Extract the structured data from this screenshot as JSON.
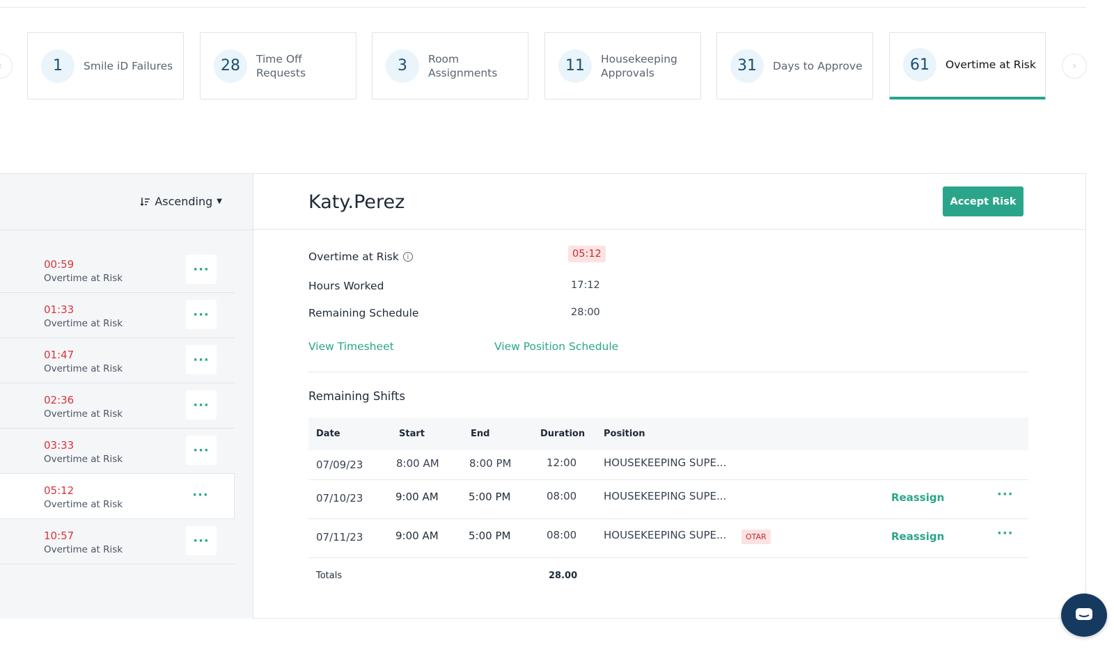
{
  "summary_cards": [
    {
      "count": "1",
      "label": "Smile iD Failures"
    },
    {
      "count": "28",
      "label_line1": "Time Off",
      "label_line2": "Requests"
    },
    {
      "count": "3",
      "label_line1": "Room",
      "label_line2": "Assignments"
    },
    {
      "count": "11",
      "label_line1": "Housekeeping",
      "label_line2": "Approvals"
    },
    {
      "count": "31",
      "label": "Days to Approve"
    },
    {
      "count": "61",
      "label": "Overtime at Risk"
    }
  ],
  "colors": {
    "accent": "#2aa58a",
    "danger": "#d9343b",
    "count_bg": "#eaf4fb",
    "chat_button": "#163a5f"
  },
  "sort": {
    "label": "Ascending",
    "icon": "sort-descending-icon"
  },
  "risk_list": [
    {
      "time": "00:59",
      "sub": "Overtime at Risk"
    },
    {
      "time": "01:33",
      "sub": "Overtime at Risk"
    },
    {
      "time": "01:47",
      "sub": "Overtime at Risk"
    },
    {
      "time": "02:36",
      "sub": "Overtime at Risk"
    },
    {
      "time": "03:33",
      "sub": "Overtime at Risk"
    },
    {
      "time": "05:12",
      "sub": "Overtime at Risk",
      "selected": true
    },
    {
      "time": "10:57",
      "sub": "Overtime at Risk"
    }
  ],
  "more_label": "···",
  "detail": {
    "employee_name": "Katy.Perez",
    "accept_label": "Accept Risk",
    "overtime_label": "Overtime at Risk",
    "overtime_value": "05:12",
    "hours_label": "Hours Worked",
    "hours_value": "17:12",
    "remaining_label": "Remaining Schedule",
    "remaining_value": "28:00",
    "view_timesheet": "View Timesheet",
    "view_position_schedule": "View Position Schedule",
    "remaining_shifts_title": "Remaining Shifts"
  },
  "shifts_table": {
    "headers": {
      "date": "Date",
      "start": "Start",
      "end": "End",
      "duration": "Duration",
      "position": "Position"
    },
    "rows": [
      {
        "date": "07/09/23",
        "start": "8:00 AM",
        "end": "8:00 PM",
        "duration": "12:00",
        "position": "HOUSEKEEPING SUPE..."
      },
      {
        "date": "07/10/23",
        "start": "9:00 AM",
        "end": "5:00 PM",
        "duration": "08:00",
        "position": "HOUSEKEEPING SUPE...",
        "action": "Reassign"
      },
      {
        "date": "07/11/23",
        "start": "9:00 AM",
        "end": "5:00 PM",
        "duration": "08:00",
        "position": "HOUSEKEEPING SUPE...",
        "tag": "OTAR",
        "action": "Reassign"
      }
    ],
    "totals_label": "Totals",
    "totals_value": "28.00"
  }
}
